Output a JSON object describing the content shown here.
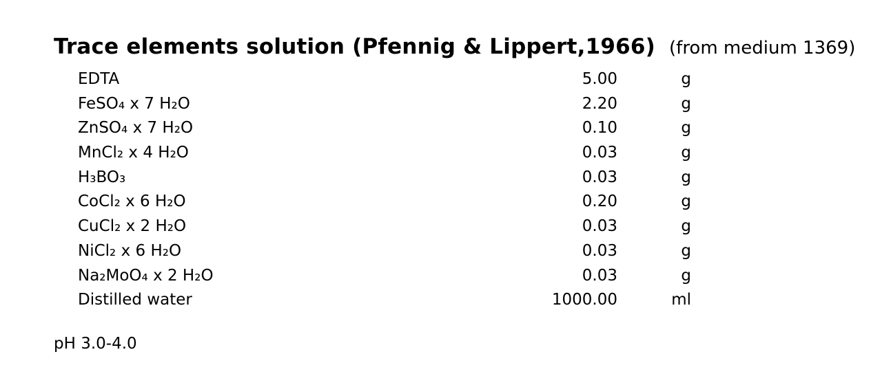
{
  "page": {
    "background_color": "#ffffff",
    "text_color": "#000000"
  },
  "header": {
    "title": "Trace elements solution (Pfennig & Lippert,1966)",
    "note": "(from medium 1369)"
  },
  "recipe": {
    "rows": [
      {
        "name": "EDTA",
        "amount": "5.00",
        "unit": "g"
      },
      {
        "name": "FeSO₄ x 7 H₂O",
        "amount": "2.20",
        "unit": "g"
      },
      {
        "name": "ZnSO₄ x 7 H₂O",
        "amount": "0.10",
        "unit": "g"
      },
      {
        "name": "MnCl₂ x 4 H₂O",
        "amount": "0.03",
        "unit": "g"
      },
      {
        "name": "H₃BO₃",
        "amount": "0.03",
        "unit": "g"
      },
      {
        "name": "CoCl₂ x 6 H₂O",
        "amount": "0.20",
        "unit": "g"
      },
      {
        "name": "CuCl₂ x 2 H₂O",
        "amount": "0.03",
        "unit": "g"
      },
      {
        "name": "NiCl₂ x 6 H₂O",
        "amount": "0.03",
        "unit": "g"
      },
      {
        "name": "Na₂MoO₄ x 2 H₂O",
        "amount": "0.03",
        "unit": "g"
      },
      {
        "name": "Distilled water",
        "amount": "1000.00",
        "unit": "ml"
      }
    ]
  },
  "footer": {
    "ph": "pH 3.0-4.0"
  }
}
